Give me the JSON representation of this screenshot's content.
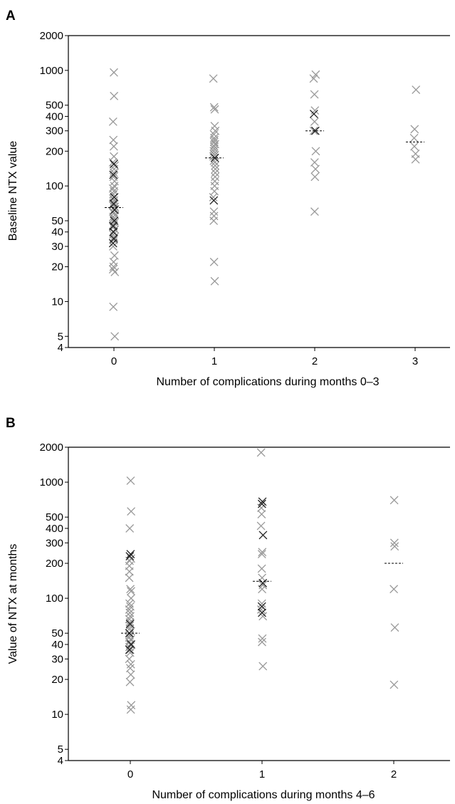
{
  "chart_data": [
    {
      "panel": "A",
      "type": "scatter",
      "xlabel": "Number of complications during months 0–3",
      "ylabel": "Baseline NTX value",
      "y_scale": "log",
      "ylim": [
        4,
        2000
      ],
      "y_ticks": [
        2000,
        1000,
        500,
        400,
        300,
        200,
        100,
        50,
        40,
        30,
        20,
        10,
        5,
        4
      ],
      "categories": [
        "0",
        "1",
        "2",
        "3"
      ],
      "grid": false,
      "colors": {
        "light_marker": "#999999",
        "dark_marker": "#222222"
      },
      "groups": [
        {
          "x": 0,
          "median": 65,
          "light": [
            960,
            600,
            360,
            250,
            220,
            180,
            160,
            150,
            140,
            130,
            120,
            110,
            100,
            95,
            90,
            85,
            80,
            78,
            75,
            72,
            70,
            68,
            66,
            63,
            60,
            58,
            56,
            54,
            52,
            50,
            48,
            46,
            44,
            42,
            40,
            38,
            36,
            34,
            30,
            25,
            22,
            20,
            19,
            18,
            9,
            5
          ],
          "dark": [
            155,
            125,
            80,
            70,
            62,
            50,
            45,
            40,
            35,
            32
          ]
        },
        {
          "x": 1,
          "median": 175,
          "light": [
            850,
            480,
            460,
            330,
            300,
            280,
            260,
            250,
            240,
            230,
            220,
            210,
            200,
            190,
            185,
            180,
            165,
            160,
            150,
            140,
            130,
            120,
            110,
            100,
            90,
            80,
            60,
            55,
            50,
            22,
            15
          ],
          "dark": [
            175,
            75
          ]
        },
        {
          "x": 2,
          "median": 300,
          "light": [
            920,
            850,
            620,
            450,
            360,
            300,
            200,
            160,
            140,
            120,
            60
          ],
          "dark": [
            420,
            300
          ]
        },
        {
          "x": 3,
          "median": 240,
          "light": [
            680,
            310,
            260,
            220,
            190,
            170
          ],
          "dark": []
        }
      ]
    },
    {
      "panel": "B",
      "type": "scatter",
      "xlabel": "Number of complications during months 4–6",
      "ylabel": "Value of NTX at months",
      "y_scale": "log",
      "ylim": [
        4,
        2000
      ],
      "y_ticks": [
        2000,
        1000,
        500,
        400,
        300,
        200,
        100,
        50,
        40,
        30,
        20,
        10,
        5,
        4
      ],
      "categories": [
        "0",
        "1",
        "2"
      ],
      "grid": false,
      "colors": {
        "light_marker": "#999999",
        "dark_marker": "#222222"
      },
      "groups": [
        {
          "x": 0,
          "median": 50,
          "light": [
            1030,
            560,
            400,
            220,
            210,
            190,
            170,
            150,
            120,
            115,
            100,
            90,
            85,
            80,
            75,
            70,
            66,
            62,
            58,
            55,
            52,
            50,
            48,
            46,
            44,
            42,
            40,
            38,
            36,
            34,
            30,
            27,
            25,
            22,
            19,
            12,
            11
          ],
          "dark": [
            240,
            230,
            60,
            50,
            40,
            36
          ]
        },
        {
          "x": 1,
          "median": 140,
          "light": [
            1800,
            600,
            530,
            420,
            250,
            240,
            180,
            150,
            130,
            120,
            90,
            80,
            70,
            45,
            42,
            26
          ],
          "dark": [
            680,
            650,
            350,
            135,
            85,
            75
          ]
        },
        {
          "x": 2,
          "median": 200,
          "light": [
            700,
            300,
            280,
            120,
            56,
            18
          ],
          "dark": []
        }
      ]
    }
  ]
}
